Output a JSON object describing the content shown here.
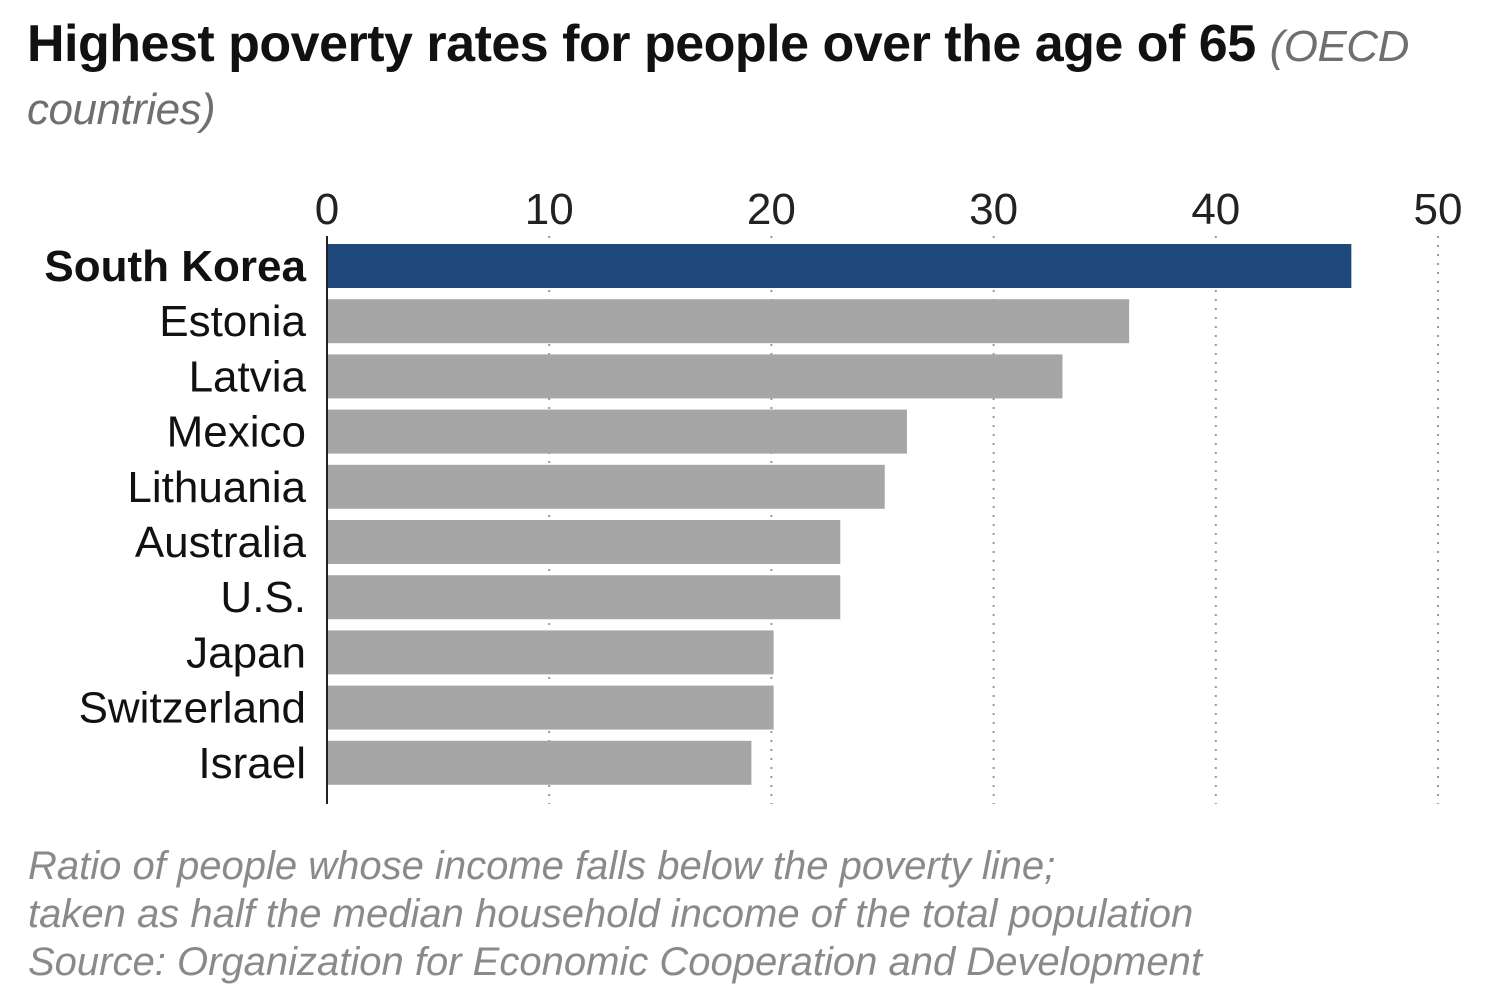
{
  "title": {
    "main": "Highest poverty rates for people over the age of 65",
    "subtitle": "(OECD countries)"
  },
  "colors": {
    "highlight": "#1f497d",
    "bar": "#a6a6a6",
    "grid": "#9a9a9a",
    "axis": "#222222"
  },
  "chart_data": {
    "type": "bar",
    "orientation": "horizontal",
    "title": "Highest poverty rates for people over the age of 65 (OECD countries)",
    "xlabel": "",
    "ylabel": "",
    "xlim": [
      0,
      50
    ],
    "ticks": [
      0,
      10,
      20,
      30,
      40,
      50
    ],
    "grid": true,
    "categories": [
      "South Korea",
      "Estonia",
      "Latvia",
      "Mexico",
      "Lithuania",
      "Australia",
      "U.S.",
      "Japan",
      "Switzerland",
      "Israel"
    ],
    "values": [
      46.1,
      36.1,
      33.1,
      26.1,
      25.1,
      23.1,
      23.1,
      20.1,
      20.1,
      19.1
    ],
    "highlighted": "South Korea"
  },
  "notes": [
    "Ratio of people whose income falls below the poverty line;",
    "taken as half the median household income of the total population",
    "Source: Organization for Economic Cooperation and Development"
  ]
}
